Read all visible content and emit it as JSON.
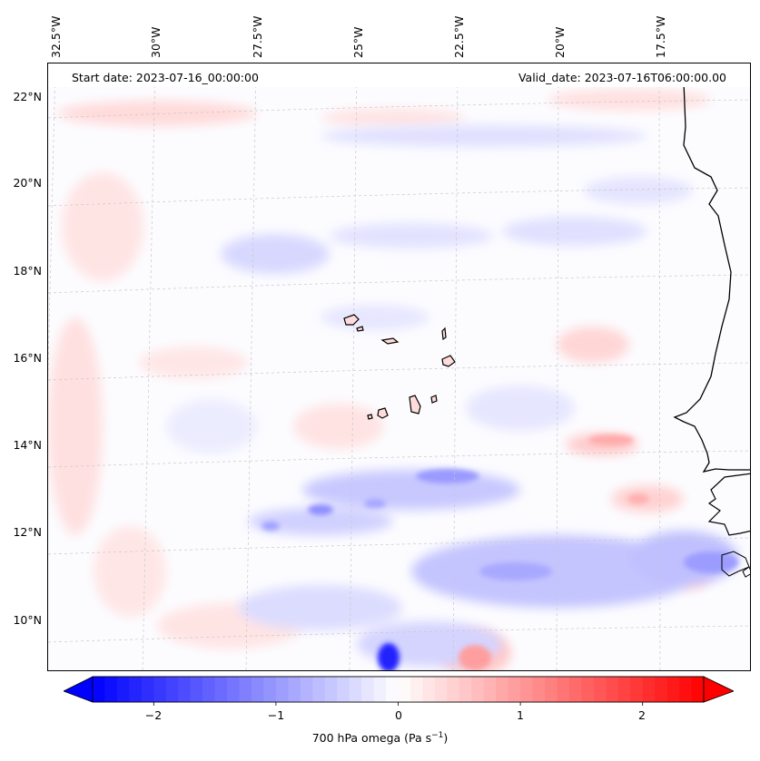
{
  "header": {
    "start_date": "Start date: 2023-07-16_00:00:00",
    "valid_date": "Valid_date: 2023-07-16T06:00:00.00"
  },
  "longitude_labels": [
    "32.5°W",
    "30°W",
    "27.5°W",
    "25°W",
    "22.5°W",
    "20°W",
    "17.5°W"
  ],
  "latitude_labels": [
    "22°N",
    "20°N",
    "18°N",
    "16°N",
    "14°N",
    "12°N",
    "10°N"
  ],
  "colorbar": {
    "ticks": [
      "−2",
      "−1",
      "0",
      "1",
      "2"
    ],
    "tick_values": [
      -2,
      -1,
      0,
      1,
      2
    ],
    "range": [
      -2.5,
      2.5
    ],
    "label_main": "700 hPa omega (Pa s",
    "label_unit_sup": "−1",
    "label_close": ")",
    "colors": {
      "negative": "#0000ff",
      "zero": "#ffffff",
      "positive": "#ff0000"
    }
  },
  "map": {
    "field": "700 hPa omega",
    "extent": {
      "lon_range": [
        -33,
        -15
      ],
      "lat_range": [
        9,
        22.8
      ]
    },
    "features": [
      "coastline-west-africa",
      "cape-verde-islands"
    ]
  }
}
